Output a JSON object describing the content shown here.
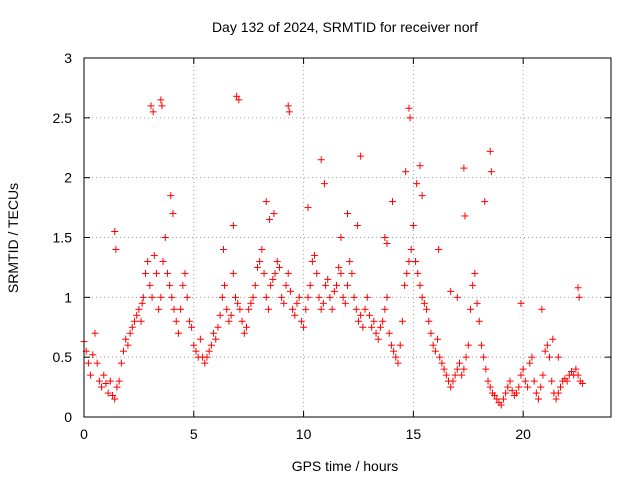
{
  "chart_data": {
    "type": "scatter",
    "title": "Day 132 of 2024, SRMTID for receiver norf",
    "xlabel": "GPS time / hours",
    "ylabel": "SRMTID / TECUs",
    "xlim": [
      0,
      24
    ],
    "ylim": [
      0,
      3
    ],
    "xticks": [
      0,
      5,
      10,
      15,
      20
    ],
    "yticks": [
      0,
      0.5,
      1,
      1.5,
      2,
      2.5,
      3
    ],
    "ytick_labels": [
      "0",
      "0.5",
      "1",
      "1.5",
      "2",
      "2.5",
      "3"
    ],
    "grid": true,
    "marker": "+",
    "marker_color": "#ff0000",
    "series": [
      {
        "name": "SRMTID",
        "x": [
          0.0,
          0.1,
          0.2,
          0.3,
          0.4,
          0.5,
          0.6,
          0.7,
          0.8,
          0.9,
          1.0,
          1.1,
          1.2,
          1.3,
          1.4,
          1.5,
          1.6,
          1.7,
          1.8,
          1.9,
          2.0,
          2.1,
          2.2,
          2.3,
          2.4,
          2.5,
          2.6,
          2.7,
          2.8,
          2.9,
          3.0,
          3.1,
          3.2,
          3.3,
          3.4,
          3.5,
          3.6,
          3.7,
          3.8,
          3.9,
          4.0,
          4.1,
          4.2,
          4.3,
          4.4,
          4.5,
          4.6,
          4.7,
          4.8,
          4.9,
          5.0,
          5.1,
          5.2,
          5.3,
          5.4,
          5.5,
          5.6,
          5.7,
          5.8,
          5.9,
          6.0,
          6.1,
          6.2,
          6.3,
          6.4,
          6.5,
          6.6,
          6.7,
          6.8,
          6.9,
          7.0,
          7.1,
          7.2,
          7.3,
          7.4,
          7.5,
          7.6,
          7.7,
          7.8,
          7.9,
          8.0,
          8.1,
          8.2,
          8.3,
          8.4,
          8.5,
          8.6,
          8.7,
          8.8,
          8.9,
          9.0,
          9.1,
          9.2,
          9.3,
          9.4,
          9.5,
          9.6,
          9.7,
          9.8,
          9.9,
          10.0,
          10.1,
          10.2,
          10.3,
          10.4,
          10.5,
          10.6,
          10.7,
          10.8,
          10.9,
          11.0,
          11.1,
          11.2,
          11.3,
          11.4,
          11.5,
          11.6,
          11.7,
          11.8,
          11.9,
          12.0,
          12.1,
          12.2,
          12.3,
          12.4,
          12.5,
          12.6,
          12.7,
          12.8,
          12.9,
          13.0,
          13.1,
          13.2,
          13.3,
          13.4,
          13.5,
          13.6,
          13.7,
          13.8,
          13.9,
          14.0,
          14.1,
          14.2,
          14.3,
          14.4,
          14.5,
          14.6,
          14.7,
          14.8,
          14.9,
          15.0,
          15.1,
          15.2,
          15.3,
          15.4,
          15.5,
          15.6,
          15.7,
          15.8,
          15.9,
          16.0,
          16.1,
          16.2,
          16.3,
          16.4,
          16.5,
          16.6,
          16.7,
          16.8,
          16.9,
          17.0,
          17.1,
          17.2,
          17.3,
          17.4,
          17.5,
          17.6,
          17.7,
          17.8,
          17.9,
          18.0,
          18.1,
          18.2,
          18.3,
          18.4,
          18.5,
          18.6,
          18.7,
          18.8,
          18.9,
          19.0,
          19.1,
          19.2,
          19.3,
          19.4,
          19.5,
          19.6,
          19.7,
          19.8,
          19.9,
          20.0,
          20.1,
          20.2,
          20.3,
          20.4,
          20.5,
          20.6,
          20.7,
          20.8,
          20.9,
          21.0,
          21.1,
          21.2,
          21.3,
          21.4,
          21.5,
          21.6,
          21.7,
          21.8,
          21.9,
          22.0,
          22.1,
          22.2,
          22.3,
          22.4,
          22.5,
          22.6,
          22.7,
          3.05,
          3.15,
          3.5,
          3.55,
          6.95,
          7.05,
          9.3,
          9.35,
          12.6,
          14.8,
          14.85,
          15.3,
          10.8,
          18.5,
          18.55,
          17.3,
          17.35,
          22.5,
          22.55,
          1.4,
          1.45,
          2.65,
          3.95,
          4.05,
          6.35,
          6.8,
          8.3,
          8.45,
          8.65,
          10.2,
          10.95,
          11.7,
          12.0,
          12.45,
          13.7,
          13.8,
          14.05,
          14.65,
          15.15,
          15.4,
          16.15,
          16.7,
          17.0,
          18.25,
          19.9,
          20.85,
          21.35,
          21.6
        ],
        "y": [
          0.63,
          0.55,
          0.45,
          0.35,
          0.52,
          0.7,
          0.45,
          0.3,
          0.25,
          0.35,
          0.28,
          0.2,
          0.3,
          0.18,
          0.15,
          0.25,
          0.3,
          0.45,
          0.55,
          0.65,
          0.6,
          0.7,
          0.75,
          0.8,
          0.85,
          0.9,
          0.8,
          1.0,
          1.2,
          1.3,
          1.1,
          1.0,
          1.35,
          1.2,
          0.9,
          1.0,
          1.3,
          1.5,
          1.2,
          1.1,
          1.0,
          0.9,
          0.8,
          0.7,
          0.9,
          1.1,
          1.2,
          1.0,
          0.8,
          0.75,
          0.6,
          0.55,
          0.5,
          0.65,
          0.5,
          0.45,
          0.5,
          0.55,
          0.6,
          0.7,
          0.65,
          0.75,
          0.85,
          1.0,
          1.1,
          0.9,
          0.8,
          0.85,
          1.2,
          1.0,
          0.95,
          0.9,
          0.8,
          0.7,
          0.75,
          0.9,
          0.95,
          1.0,
          1.1,
          1.25,
          1.3,
          1.4,
          1.2,
          1.0,
          0.9,
          1.1,
          1.15,
          1.2,
          1.3,
          1.25,
          1.0,
          0.95,
          1.1,
          1.2,
          1.05,
          0.9,
          0.85,
          0.95,
          1.0,
          0.8,
          0.75,
          0.9,
          1.0,
          1.1,
          1.3,
          1.35,
          1.2,
          1.0,
          0.9,
          0.95,
          1.1,
          1.15,
          1.0,
          0.9,
          1.05,
          1.1,
          1.25,
          1.2,
          1.0,
          0.95,
          1.1,
          1.3,
          1.2,
          1.0,
          0.9,
          0.8,
          0.85,
          0.75,
          0.9,
          1.0,
          0.85,
          0.75,
          0.8,
          0.7,
          0.65,
          0.75,
          0.8,
          0.9,
          1.0,
          0.7,
          0.6,
          0.55,
          0.5,
          0.45,
          0.6,
          0.8,
          1.1,
          1.2,
          1.3,
          1.4,
          1.6,
          1.3,
          1.2,
          1.1,
          1.0,
          0.95,
          0.9,
          0.8,
          0.7,
          0.6,
          0.55,
          0.65,
          0.5,
          0.45,
          0.4,
          0.35,
          0.3,
          0.25,
          0.3,
          0.35,
          0.4,
          0.45,
          0.35,
          0.4,
          0.5,
          0.6,
          0.9,
          1.1,
          1.2,
          0.95,
          0.8,
          0.6,
          0.5,
          0.4,
          0.3,
          0.25,
          0.2,
          0.18,
          0.15,
          0.12,
          0.1,
          0.15,
          0.2,
          0.25,
          0.3,
          0.22,
          0.18,
          0.2,
          0.25,
          0.35,
          0.4,
          0.3,
          0.25,
          0.45,
          0.5,
          0.3,
          0.2,
          0.15,
          0.25,
          0.35,
          0.55,
          0.6,
          0.5,
          0.3,
          0.2,
          0.15,
          0.2,
          0.25,
          0.3,
          0.32,
          0.3,
          0.35,
          0.38,
          0.35,
          0.4,
          0.35,
          0.3,
          0.28,
          2.6,
          2.55,
          2.65,
          2.6,
          2.68,
          2.65,
          2.6,
          2.55,
          2.18,
          2.58,
          2.5,
          2.1,
          2.15,
          2.22,
          2.05,
          2.08,
          1.68,
          1.08,
          1.0,
          1.55,
          1.4,
          0.95,
          1.85,
          1.7,
          1.4,
          1.6,
          1.8,
          1.65,
          1.7,
          1.75,
          1.95,
          1.5,
          1.7,
          1.6,
          1.5,
          1.45,
          1.8,
          2.05,
          1.95,
          1.85,
          1.4,
          1.05,
          1.0,
          1.8,
          0.95,
          0.9,
          0.65,
          0.5
        ]
      }
    ]
  }
}
